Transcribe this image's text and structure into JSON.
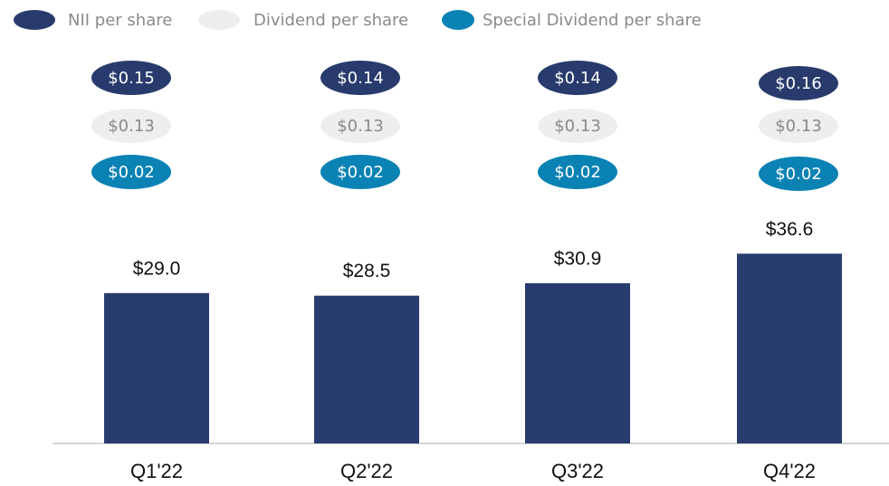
{
  "chart_data": {
    "type": "bar",
    "categories": [
      "Q1'22",
      "Q2'22",
      "Q3'22",
      "Q4'22"
    ],
    "values": [
      29.0,
      28.5,
      30.9,
      36.6
    ],
    "value_labels": [
      "$29.0",
      "$28.5",
      "$30.9",
      "$36.6"
    ],
    "color": "#283c6e",
    "badges": [
      {
        "name": "NII per share",
        "color": "#283b6c",
        "text_color": "#ffffff",
        "values": [
          0.15,
          0.14,
          0.14,
          0.16
        ],
        "value_labels": [
          "$0.15",
          "$0.14",
          "$0.14",
          "$0.16"
        ]
      },
      {
        "name": "Dividend per share",
        "color": "#eeeeee",
        "text_color": "#8a8a8a",
        "values": [
          0.13,
          0.13,
          0.13,
          0.13
        ],
        "value_labels": [
          "$0.13",
          "$0.13",
          "$0.13",
          "$0.13"
        ]
      },
      {
        "name": "Special Dividend per share",
        "color": "#0a82b4",
        "text_color": "#ffffff",
        "values": [
          0.02,
          0.02,
          0.02,
          0.02
        ],
        "value_labels": [
          "$0.02",
          "$0.02",
          "$0.02",
          "$0.02"
        ]
      }
    ]
  }
}
